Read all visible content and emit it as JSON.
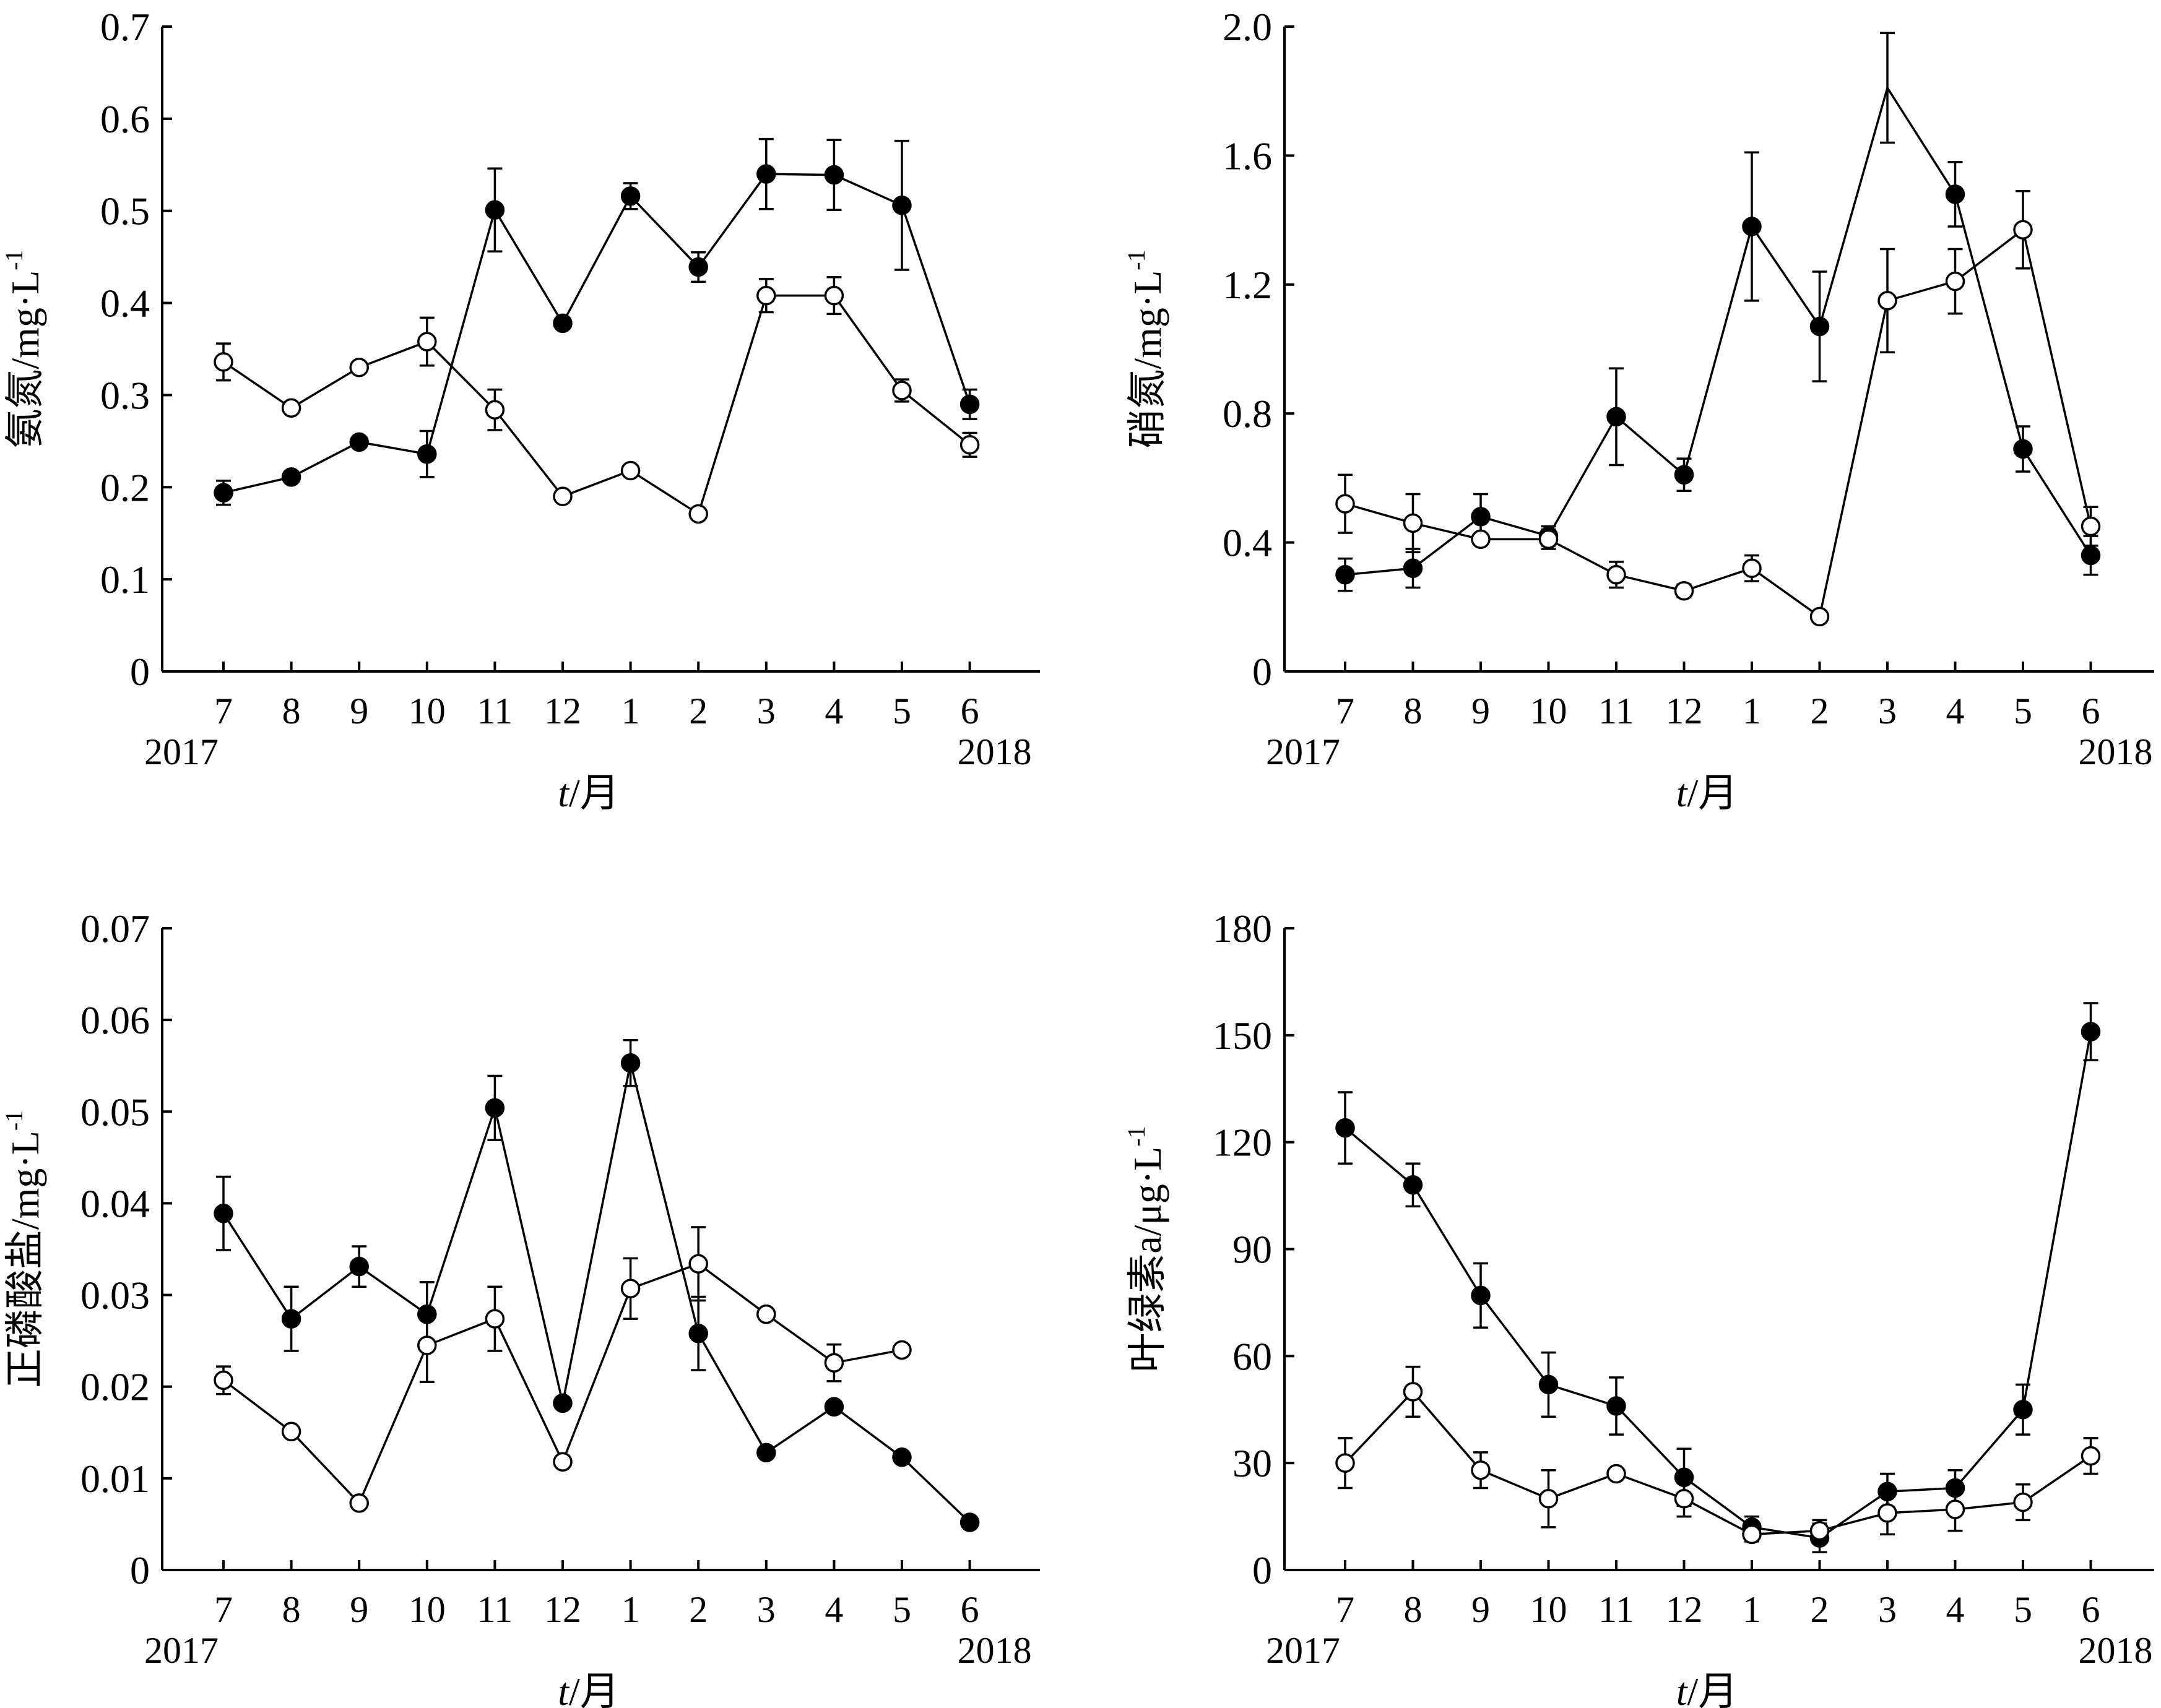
{
  "chart_data": [
    {
      "type": "line",
      "categories": [
        "7",
        "8",
        "9",
        "10",
        "11",
        "12",
        "1",
        "2",
        "3",
        "4",
        "5",
        "6"
      ],
      "year_start": "2017",
      "year_end": "2018",
      "ylabel": "氨氮/mg·L",
      "ylabel_sup": "-1",
      "xlabel_italic": "t",
      "xlabel_rest": "/月",
      "ylim": [
        0,
        0.7
      ],
      "yticks": [
        0,
        0.1,
        0.2,
        0.3,
        0.4,
        0.5,
        0.6,
        0.7
      ],
      "ytick_labels": [
        "0",
        "0.1",
        "0.2",
        "0.3",
        "0.4",
        "0.5",
        "0.6",
        "0.7"
      ],
      "series": [
        {
          "marker": "filled",
          "values": [
            0.194,
            0.211,
            0.249,
            0.236,
            0.501,
            0.378,
            0.516,
            0.439,
            0.54,
            0.539,
            0.506,
            0.29
          ],
          "errors": [
            0.013,
            0.005,
            0.005,
            0.025,
            0.045,
            0.005,
            0.014,
            0.016,
            0.038,
            0.038,
            0.07,
            0.016
          ]
        },
        {
          "marker": "open",
          "values": [
            0.336,
            0.286,
            0.33,
            0.358,
            0.284,
            0.19,
            0.218,
            0.171,
            0.408,
            0.408,
            0.305,
            0.246
          ],
          "errors": [
            0.02,
            0.004,
            0.004,
            0.026,
            0.022,
            0.005,
            0.005,
            0.004,
            0.018,
            0.02,
            0.012,
            0.013
          ]
        }
      ]
    },
    {
      "type": "line",
      "categories": [
        "7",
        "8",
        "9",
        "10",
        "11",
        "12",
        "1",
        "2",
        "3",
        "4",
        "5",
        "6"
      ],
      "year_start": "2017",
      "year_end": "2018",
      "ylabel": "硝氮/mg·L",
      "ylabel_sup": "-1",
      "xlabel_italic": "t",
      "xlabel_rest": "/月",
      "ylim": [
        0,
        2.0
      ],
      "yticks": [
        0,
        0.4,
        0.8,
        1.2,
        1.6,
        2.0
      ],
      "ytick_labels": [
        "0",
        "0.4",
        "0.8",
        "1.2",
        "1.6",
        "2.0"
      ],
      "series": [
        {
          "marker": "filled",
          "values": [
            0.3,
            0.32,
            0.48,
            0.42,
            0.79,
            0.61,
            1.38,
            1.07,
            null,
            1.48,
            0.69,
            0.36
          ],
          "errors": [
            0.05,
            0.06,
            0.07,
            0.03,
            0.15,
            0.05,
            0.23,
            0.17,
            null,
            0.1,
            0.07,
            0.06
          ]
        },
        {
          "marker": "open",
          "values": [
            0.52,
            0.46,
            0.41,
            0.41,
            0.3,
            0.25,
            0.32,
            0.17,
            1.15,
            1.21,
            1.37,
            0.45
          ],
          "errors": [
            0.09,
            0.09,
            0.01,
            0.03,
            0.04,
            0.02,
            0.04,
            0.01,
            0.16,
            0.1,
            0.12,
            0.06
          ]
        }
      ],
      "extra_open_line_point": {
        "index": 8,
        "value": 1.81,
        "error": 0.17
      }
    },
    {
      "type": "line",
      "categories": [
        "7",
        "8",
        "9",
        "10",
        "11",
        "12",
        "1",
        "2",
        "3",
        "4",
        "5",
        "6"
      ],
      "year_start": "2017",
      "year_end": "2018",
      "ylabel": "正磷酸盐/mg·L",
      "ylabel_sup": "-1",
      "xlabel_italic": "t",
      "xlabel_rest": "/月",
      "ylim": [
        0,
        0.07
      ],
      "yticks": [
        0,
        0.01,
        0.02,
        0.03,
        0.04,
        0.05,
        0.06,
        0.07
      ],
      "ytick_labels": [
        "0",
        "0.01",
        "0.02",
        "0.03",
        "0.04",
        "0.05",
        "0.06",
        "0.07"
      ],
      "series": [
        {
          "marker": "filled",
          "values": [
            0.0389,
            0.0274,
            0.0331,
            0.0279,
            0.0504,
            0.0182,
            0.0553,
            0.0258,
            0.0128,
            0.0178,
            0.0123,
            0.0052
          ],
          "errors": [
            0.004,
            0.0035,
            0.0022,
            0.0035,
            0.0035,
            0.0005,
            0.0025,
            0.004,
            0.0005,
            0.0005,
            0.0005,
            0.0005
          ]
        },
        {
          "marker": "open",
          "values": [
            0.0207,
            0.0151,
            0.0073,
            0.0245,
            0.0274,
            0.0118,
            0.0307,
            0.0334,
            0.0279,
            0.0226,
            0.024,
            null
          ],
          "errors": [
            0.0015,
            0.0004,
            0.0004,
            0.004,
            0.0035,
            0.0004,
            0.0033,
            0.004,
            0.0004,
            0.002,
            0.0004,
            null
          ]
        }
      ]
    },
    {
      "type": "line",
      "categories": [
        "7",
        "8",
        "9",
        "10",
        "11",
        "12",
        "1",
        "2",
        "3",
        "4",
        "5",
        "6"
      ],
      "year_start": "2017",
      "year_end": "2018",
      "ylabel": "叶绿素a/μg·L",
      "ylabel_sup": "-1",
      "xlabel_italic": "t",
      "xlabel_rest": "/月",
      "ylim": [
        0,
        180
      ],
      "yticks": [
        0,
        30,
        60,
        90,
        120,
        150,
        180
      ],
      "ytick_labels": [
        "0",
        "30",
        "60",
        "90",
        "120",
        "150",
        "180"
      ],
      "series": [
        {
          "marker": "filled",
          "values": [
            124,
            108,
            77,
            52,
            46,
            26,
            12,
            9,
            22,
            23,
            45,
            151
          ],
          "errors": [
            10,
            6,
            9,
            9,
            8,
            8,
            3,
            4,
            5,
            5,
            7,
            8
          ]
        },
        {
          "marker": "open",
          "values": [
            30,
            50,
            28,
            20,
            27,
            20,
            10,
            11,
            16,
            17,
            19,
            32
          ],
          "errors": [
            7,
            7,
            5,
            8,
            1,
            5,
            2,
            3,
            6,
            6,
            5,
            5
          ]
        }
      ]
    }
  ]
}
